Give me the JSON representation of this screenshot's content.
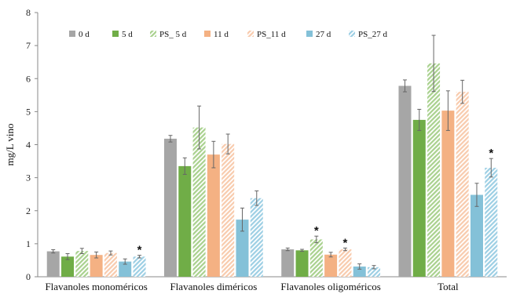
{
  "chart_data": {
    "type": "bar",
    "ylabel": "mg/L vino",
    "ylim": [
      0,
      8
    ],
    "yticks": [
      "0",
      "1",
      "2",
      "3",
      "4",
      "5",
      "6",
      "7",
      "8"
    ],
    "categories": [
      "Flavanoles monoméricos",
      "Flavanoles diméricos",
      "Flavanoles oligoméricos",
      "Total"
    ],
    "legend_position": "top-left",
    "series": [
      {
        "name": "0 d",
        "color": "#a6a6a6",
        "pattern": "solid",
        "values": [
          0.77,
          4.18,
          0.83,
          5.78
        ],
        "errors": [
          0.05,
          0.1,
          0.04,
          0.18
        ],
        "sig": [
          false,
          false,
          false,
          false
        ]
      },
      {
        "name": "5 d",
        "color": "#70ad47",
        "pattern": "solid",
        "values": [
          0.61,
          3.35,
          0.8,
          4.75
        ],
        "errors": [
          0.09,
          0.25,
          0.03,
          0.32
        ],
        "sig": [
          false,
          false,
          false,
          false
        ]
      },
      {
        "name": "PS_ 5 d",
        "color": "#a9d18e",
        "pattern": "hatched",
        "values": [
          0.78,
          4.52,
          1.13,
          6.46
        ],
        "errors": [
          0.08,
          0.65,
          0.1,
          0.85
        ],
        "sig": [
          false,
          false,
          true,
          false
        ]
      },
      {
        "name": "11 d",
        "color": "#f4b183",
        "pattern": "solid",
        "values": [
          0.66,
          3.7,
          0.67,
          5.03
        ],
        "errors": [
          0.09,
          0.4,
          0.07,
          0.6
        ],
        "sig": [
          false,
          false,
          false,
          false
        ]
      },
      {
        "name": "PS_11 d",
        "color": "#f8cbad",
        "pattern": "hatched",
        "values": [
          0.72,
          4.02,
          0.83,
          5.6
        ],
        "errors": [
          0.06,
          0.3,
          0.04,
          0.35
        ],
        "sig": [
          false,
          false,
          true,
          false
        ]
      },
      {
        "name": "27 d",
        "color": "#84c1d8",
        "pattern": "solid",
        "values": [
          0.46,
          1.73,
          0.31,
          2.48
        ],
        "errors": [
          0.08,
          0.35,
          0.08,
          0.35
        ],
        "sig": [
          false,
          false,
          false,
          false
        ]
      },
      {
        "name": "PS_27 d",
        "color": "#9dcfe4",
        "pattern": "hatched",
        "values": [
          0.61,
          2.38,
          0.29,
          3.3
        ],
        "errors": [
          0.04,
          0.22,
          0.05,
          0.28
        ],
        "sig": [
          true,
          false,
          false,
          true
        ]
      }
    ],
    "sig_symbol": "*",
    "grid": false
  }
}
